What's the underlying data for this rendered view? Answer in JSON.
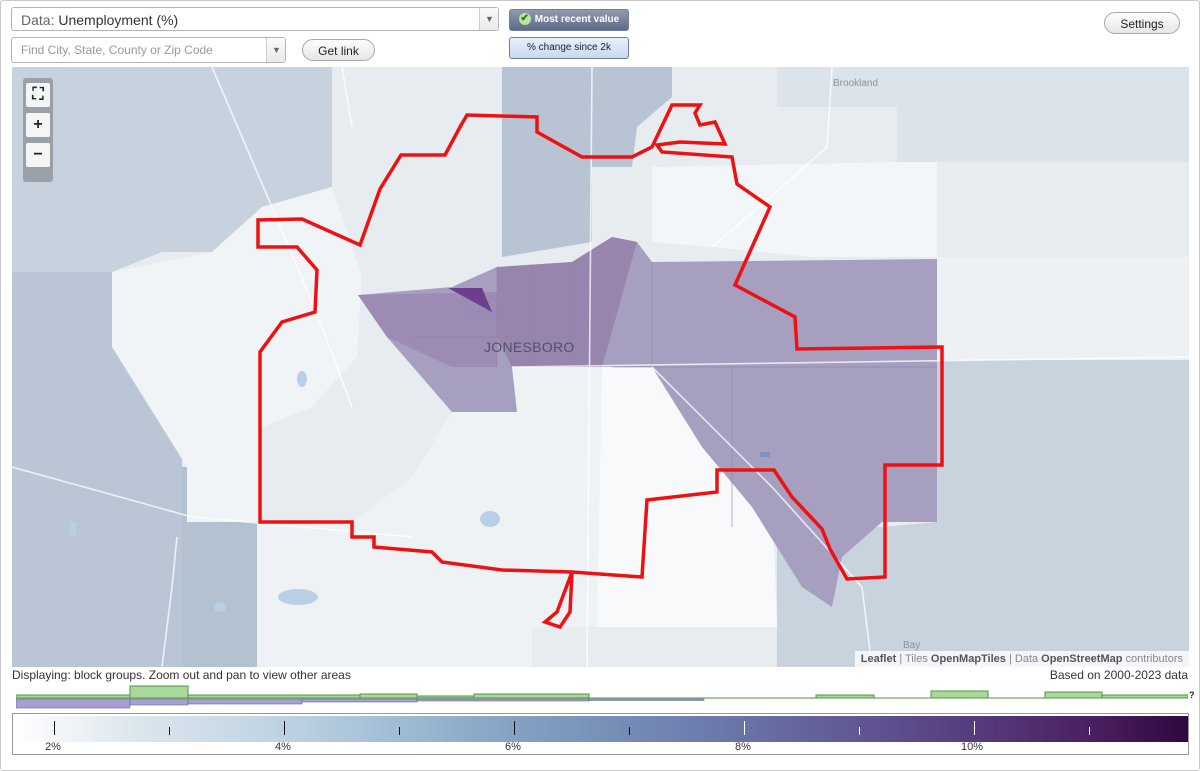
{
  "toolbar": {
    "data_prefix": "Data:",
    "data_value": "Unemployment (%)",
    "search_placeholder": "Find City, State, County or Zip Code",
    "get_link_label": "Get link",
    "most_recent_label": "Most recent value",
    "change_label": "% change since 2k",
    "settings_label": "Settings"
  },
  "map": {
    "city_label": "JONESBORO",
    "town_brookland": "Brookland",
    "town_bay": "Bay",
    "zoom_fullscreen": "⛶",
    "zoom_in": "+",
    "zoom_out": "−",
    "attribution": {
      "leaflet": "Leaflet",
      "sep1": " | Tiles ",
      "tiles": "OpenMapTiles",
      "sep2": " | Data ",
      "data": "OpenStreetMap",
      "contrib": " contributors"
    }
  },
  "status": {
    "displaying": "Displaying: block groups. Zoom out and pan to view other areas",
    "based_on": "Based on 2000-2023 data"
  },
  "legend": {
    "tick_labels": [
      "2%",
      "4%",
      "6%",
      "8%",
      "10%"
    ],
    "help": "?"
  },
  "colors": {
    "boundary": "#ee1111",
    "accent": "#5e6b86"
  }
}
